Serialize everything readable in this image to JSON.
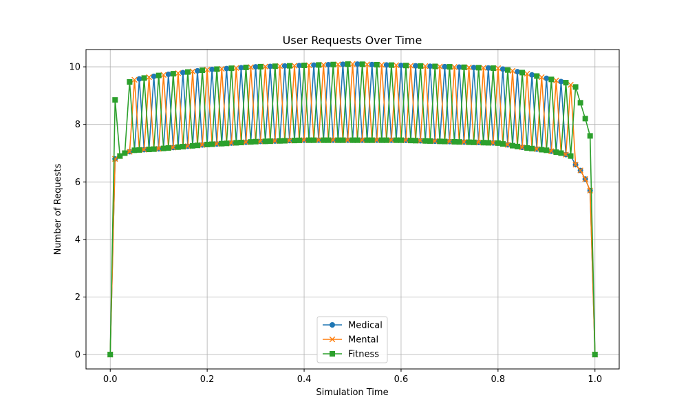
{
  "chart_data": {
    "type": "line",
    "title": "User Requests Over Time",
    "xlabel": "Simulation Time",
    "ylabel": "Number of Requests",
    "xlim": [
      -0.05,
      1.05
    ],
    "ylim": [
      -0.5,
      10.6
    ],
    "xticks": [
      0.0,
      0.2,
      0.4,
      0.6,
      0.8,
      1.0
    ],
    "xtick_labels": [
      "0.0",
      "0.2",
      "0.4",
      "0.6",
      "0.8",
      "1.0"
    ],
    "yticks": [
      0,
      2,
      4,
      6,
      8,
      10
    ],
    "ytick_labels": [
      "0",
      "2",
      "4",
      "6",
      "8",
      "10"
    ],
    "grid": true,
    "legend_position": "bottom-center",
    "x_start": 0.0,
    "x_step": 0.01,
    "x_count": 101,
    "series": [
      {
        "name": "Medical",
        "color": "#1f77b4",
        "marker": "circle",
        "hi_start": 0.04,
        "hi_phase": 0
      },
      {
        "name": "Mental",
        "color": "#ff7f0e",
        "marker": "x",
        "hi_start": 0.03,
        "hi_phase": 1
      },
      {
        "name": "Fitness",
        "color": "#2ca02c",
        "marker": "square",
        "hi_start": 0.01,
        "hi_phase": 2
      }
    ],
    "envelope_high": [
      [
        0.0,
        0.0
      ],
      [
        0.01,
        8.85
      ],
      [
        0.02,
        9.25
      ],
      [
        0.03,
        9.4
      ],
      [
        0.05,
        9.55
      ],
      [
        0.1,
        9.7
      ],
      [
        0.15,
        9.8
      ],
      [
        0.2,
        9.9
      ],
      [
        0.3,
        10.0
      ],
      [
        0.4,
        10.05
      ],
      [
        0.5,
        10.1
      ],
      [
        0.6,
        10.05
      ],
      [
        0.7,
        10.0
      ],
      [
        0.8,
        9.95
      ],
      [
        0.85,
        9.8
      ],
      [
        0.9,
        9.6
      ],
      [
        0.94,
        9.45
      ],
      [
        0.96,
        9.3
      ],
      [
        0.97,
        8.75
      ],
      [
        0.98,
        8.2
      ],
      [
        0.99,
        7.6
      ],
      [
        1.0,
        0.0
      ]
    ],
    "envelope_low": [
      [
        0.0,
        0.0
      ],
      [
        0.01,
        6.8
      ],
      [
        0.03,
        7.0
      ],
      [
        0.05,
        7.1
      ],
      [
        0.1,
        7.15
      ],
      [
        0.2,
        7.3
      ],
      [
        0.3,
        7.4
      ],
      [
        0.4,
        7.45
      ],
      [
        0.5,
        7.45
      ],
      [
        0.6,
        7.45
      ],
      [
        0.7,
        7.4
      ],
      [
        0.8,
        7.35
      ],
      [
        0.85,
        7.2
      ],
      [
        0.9,
        7.1
      ],
      [
        0.93,
        7.0
      ],
      [
        0.95,
        6.9
      ],
      [
        0.96,
        6.6
      ],
      [
        0.97,
        6.4
      ],
      [
        0.98,
        6.1
      ],
      [
        0.99,
        5.7
      ],
      [
        1.0,
        0.0
      ]
    ]
  }
}
